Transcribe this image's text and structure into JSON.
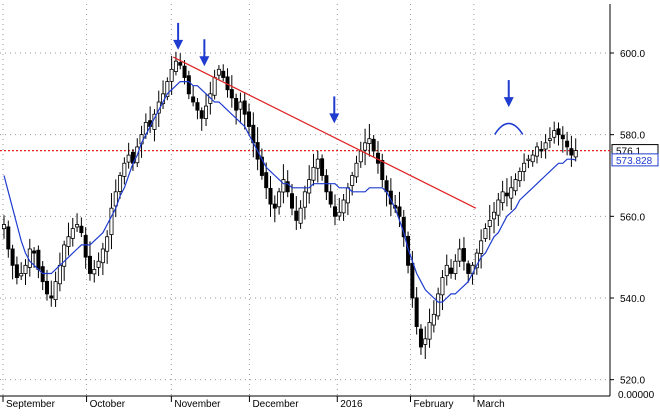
{
  "chart_data": {
    "type": "candlestick",
    "x_axis": {
      "tick_labels": [
        "September",
        "October",
        "November",
        "December",
        "2016",
        "February",
        "March"
      ]
    },
    "y_axis": {
      "range": [
        516,
        612
      ],
      "tick_values": [
        520,
        540,
        560,
        580,
        600
      ],
      "tick_labels": [
        "520.0",
        "540.0",
        "560.0",
        "580.0",
        "600.0"
      ],
      "bottom_label": "0.00000"
    },
    "price_badges": [
      {
        "value": "576.1",
        "color": "#000000",
        "bg": "#ffffff"
      },
      {
        "value": "573.828",
        "color": "#1f3ccf",
        "bg": "#ffffff"
      }
    ],
    "reference_line": {
      "y": 576.1,
      "color": "#e02020",
      "style": "dotted"
    },
    "trend_line": {
      "from": {
        "x": 0.284,
        "y": 599
      },
      "to": {
        "x": 0.78,
        "y": 562
      },
      "color": "#e02020"
    },
    "moving_average_color": "#1f3ccf",
    "candle_color": "#000000",
    "marker_color": "#1f3ccf",
    "markers": [
      {
        "type": "arrow",
        "x": 0.292,
        "y": 601
      },
      {
        "type": "arrow",
        "x": 0.335,
        "y": 597
      },
      {
        "type": "arrow",
        "x": 0.548,
        "y": 583
      },
      {
        "type": "arrow",
        "x": 0.834,
        "y": 587
      },
      {
        "type": "arc",
        "x": 0.834,
        "y": 583
      }
    ],
    "closes": [
      558,
      552,
      548,
      545,
      546,
      548,
      552,
      551,
      547,
      544,
      541,
      540,
      544,
      548,
      553,
      555,
      557,
      558,
      556,
      550,
      546,
      547,
      549,
      552,
      555,
      562,
      566,
      570,
      573,
      575,
      573,
      577,
      580,
      583,
      582,
      585,
      588,
      590,
      593,
      596,
      598,
      597,
      594,
      590,
      588,
      586,
      584,
      587,
      590,
      594,
      596,
      594,
      591,
      589,
      586,
      588,
      585,
      582,
      578,
      574,
      570,
      567,
      563,
      562,
      566,
      569,
      566,
      562,
      559,
      562,
      566,
      569,
      572,
      574,
      570,
      566,
      563,
      560,
      561,
      564,
      567,
      570,
      573,
      576,
      578,
      579,
      576,
      573,
      569,
      566,
      563,
      562,
      560,
      555,
      548,
      540,
      533,
      528,
      530,
      534,
      536,
      541,
      545,
      548,
      546,
      549,
      552,
      549,
      546,
      548,
      551,
      554,
      557,
      559,
      561,
      564,
      566,
      565,
      567,
      569,
      571,
      573,
      574,
      575,
      577,
      576,
      578,
      579,
      581,
      580,
      579,
      577,
      575,
      576.1
    ],
    "ma": [
      570,
      566,
      562,
      558,
      554,
      551,
      549,
      548,
      547,
      546,
      546,
      546,
      547,
      548,
      549,
      550,
      551,
      552,
      553,
      553,
      553,
      554,
      555,
      556,
      558,
      560,
      562,
      565,
      567,
      570,
      573,
      575,
      578,
      580,
      582,
      584,
      586,
      588,
      590,
      591,
      592,
      593,
      593,
      593,
      592,
      592,
      591,
      590,
      589,
      588,
      588,
      587,
      586,
      585,
      584,
      583,
      582,
      580,
      578,
      576,
      574,
      572,
      571,
      570,
      569,
      568,
      568,
      567,
      567,
      567,
      567,
      567,
      568,
      568,
      568,
      568,
      568,
      568,
      567,
      567,
      567,
      566,
      566,
      566,
      566,
      567,
      567,
      567,
      567,
      566,
      564,
      562,
      559,
      556,
      552,
      549,
      546,
      544,
      542,
      541,
      540,
      539,
      539,
      540,
      541,
      541,
      542,
      543,
      544,
      546,
      548,
      550,
      551,
      553,
      555,
      556,
      558,
      560,
      561,
      562,
      564,
      565,
      566,
      567,
      568,
      569,
      570,
      571,
      572,
      573,
      573,
      574,
      574,
      573.828
    ]
  }
}
